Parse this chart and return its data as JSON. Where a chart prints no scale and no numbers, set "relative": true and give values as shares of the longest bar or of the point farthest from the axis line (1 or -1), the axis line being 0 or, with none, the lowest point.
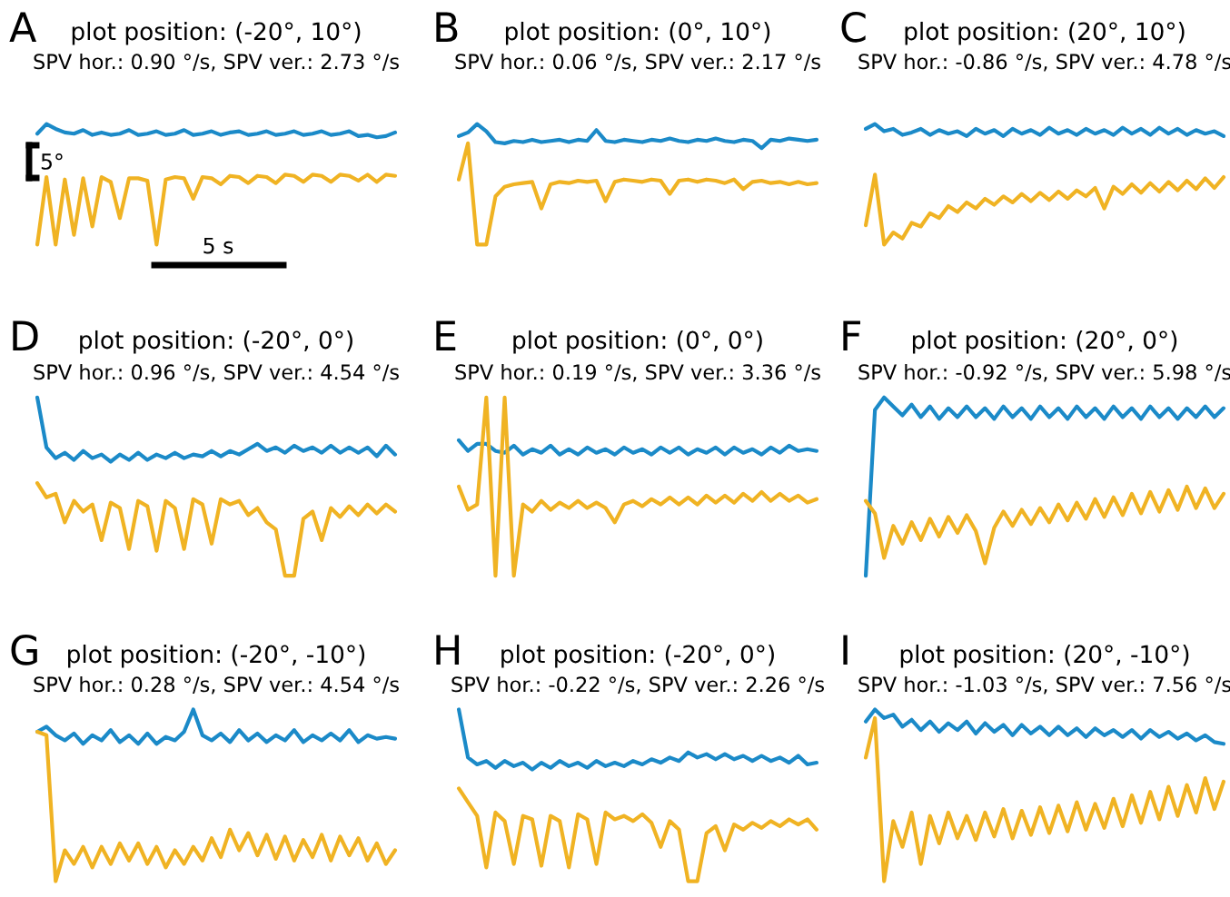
{
  "chart_data": [
    {
      "type": "line",
      "relative": true,
      "title": "plot position: (-20°, 10°)",
      "subtitle": "SPV hor.: 0.90 °/s, SPV ver.: 2.73 °/s",
      "annotations": [
        "A",
        "5°",
        "5 s"
      ],
      "categories": [
        null,
        null,
        null,
        null,
        null,
        null,
        null,
        null,
        null,
        null,
        null,
        null,
        null,
        null,
        null,
        null,
        null,
        null,
        null,
        null,
        null,
        null,
        null,
        null,
        null,
        null,
        null,
        null,
        null,
        null,
        null,
        null,
        null,
        null,
        null,
        null,
        null,
        null,
        null,
        null
      ],
      "series": [
        {
          "color": "#1b8ac8",
          "values": [
            0.92,
            1.0,
            0.96,
            0.93,
            0.92,
            0.95,
            0.91,
            0.93,
            0.91,
            0.92,
            0.95,
            0.91,
            0.92,
            0.94,
            0.91,
            0.92,
            0.95,
            0.91,
            0.92,
            0.94,
            0.91,
            0.93,
            0.94,
            0.91,
            0.92,
            0.94,
            0.91,
            0.92,
            0.94,
            0.91,
            0.92,
            0.94,
            0.91,
            0.92,
            0.94,
            0.9,
            0.91,
            0.89,
            0.9,
            0.93
          ]
        },
        {
          "color": "#f0b323",
          "values": [
            0,
            0.56,
            0,
            0.54,
            0.08,
            0.55,
            0.15,
            0.56,
            0.52,
            0.22,
            0.55,
            0.55,
            0.53,
            0,
            0.54,
            0.56,
            0.55,
            0.38,
            0.56,
            0.55,
            0.5,
            0.57,
            0.56,
            0.51,
            0.57,
            0.56,
            0.51,
            0.58,
            0.57,
            0.52,
            0.58,
            0.57,
            0.52,
            0.58,
            0.57,
            0.53,
            0.58,
            0.52,
            0.58,
            0.57
          ]
        }
      ]
    },
    {
      "type": "line",
      "relative": true,
      "title": "plot position: (0°, 10°)",
      "subtitle": "SPV hor.: 0.06 °/s, SPV ver.: 2.17 °/s",
      "annotations": [
        "B"
      ],
      "categories": [
        null,
        null,
        null,
        null,
        null,
        null,
        null,
        null,
        null,
        null,
        null,
        null,
        null,
        null,
        null,
        null,
        null,
        null,
        null,
        null,
        null,
        null,
        null,
        null,
        null,
        null,
        null,
        null,
        null,
        null,
        null,
        null,
        null,
        null,
        null,
        null,
        null,
        null,
        null,
        null
      ],
      "series": [
        {
          "color": "#1b8ac8",
          "values": [
            0.9,
            0.93,
            1.0,
            0.94,
            0.85,
            0.84,
            0.86,
            0.85,
            0.87,
            0.85,
            0.86,
            0.87,
            0.85,
            0.87,
            0.86,
            0.95,
            0.86,
            0.85,
            0.87,
            0.86,
            0.85,
            0.87,
            0.86,
            0.88,
            0.86,
            0.85,
            0.87,
            0.86,
            0.88,
            0.86,
            0.85,
            0.87,
            0.86,
            0.8,
            0.87,
            0.86,
            0.88,
            0.87,
            0.86,
            0.87
          ]
        },
        {
          "color": "#f0b323",
          "values": [
            0.54,
            0.84,
            0,
            0,
            0.4,
            0.48,
            0.5,
            0.51,
            0.52,
            0.3,
            0.5,
            0.52,
            0.51,
            0.53,
            0.52,
            0.53,
            0.36,
            0.52,
            0.54,
            0.53,
            0.52,
            0.54,
            0.53,
            0.42,
            0.53,
            0.54,
            0.52,
            0.54,
            0.53,
            0.51,
            0.54,
            0.46,
            0.52,
            0.53,
            0.51,
            0.52,
            0.5,
            0.52,
            0.5,
            0.51
          ]
        }
      ]
    },
    {
      "type": "line",
      "relative": true,
      "title": "plot position: (20°, 10°)",
      "subtitle": "SPV hor.: -0.86 °/s, SPV ver.: 4.78 °/s",
      "annotations": [
        "C"
      ],
      "categories": [
        null,
        null,
        null,
        null,
        null,
        null,
        null,
        null,
        null,
        null,
        null,
        null,
        null,
        null,
        null,
        null,
        null,
        null,
        null,
        null,
        null,
        null,
        null,
        null,
        null,
        null,
        null,
        null,
        null,
        null,
        null,
        null,
        null,
        null,
        null,
        null,
        null,
        null,
        null,
        null
      ],
      "series": [
        {
          "color": "#1b8ac8",
          "values": [
            0.96,
            1.0,
            0.94,
            0.96,
            0.91,
            0.93,
            0.96,
            0.91,
            0.95,
            0.92,
            0.94,
            0.9,
            0.96,
            0.92,
            0.95,
            0.9,
            0.96,
            0.92,
            0.95,
            0.91,
            0.97,
            0.92,
            0.95,
            0.91,
            0.96,
            0.92,
            0.95,
            0.91,
            0.97,
            0.92,
            0.96,
            0.91,
            0.97,
            0.92,
            0.96,
            0.91,
            0.95,
            0.92,
            0.94,
            0.9
          ]
        },
        {
          "color": "#f0b323",
          "values": [
            0.16,
            0.58,
            0,
            0.1,
            0.05,
            0.18,
            0.15,
            0.26,
            0.22,
            0.32,
            0.27,
            0.35,
            0.3,
            0.38,
            0.33,
            0.4,
            0.35,
            0.42,
            0.36,
            0.43,
            0.37,
            0.44,
            0.38,
            0.45,
            0.4,
            0.47,
            0.3,
            0.48,
            0.42,
            0.5,
            0.43,
            0.51,
            0.44,
            0.52,
            0.45,
            0.53,
            0.46,
            0.55,
            0.47,
            0.56
          ]
        }
      ]
    },
    {
      "type": "line",
      "relative": true,
      "title": "plot position: (-20°, 0°)",
      "subtitle": "SPV hor.: 0.96 °/s, SPV ver.: 4.54 °/s",
      "annotations": [
        "D"
      ],
      "categories": [
        null,
        null,
        null,
        null,
        null,
        null,
        null,
        null,
        null,
        null,
        null,
        null,
        null,
        null,
        null,
        null,
        null,
        null,
        null,
        null,
        null,
        null,
        null,
        null,
        null,
        null,
        null,
        null,
        null,
        null,
        null,
        null,
        null,
        null,
        null,
        null,
        null,
        null,
        null,
        null
      ],
      "series": [
        {
          "color": "#1b8ac8",
          "values": [
            1.0,
            0.72,
            0.66,
            0.69,
            0.65,
            0.7,
            0.66,
            0.68,
            0.64,
            0.68,
            0.65,
            0.69,
            0.65,
            0.68,
            0.66,
            0.69,
            0.66,
            0.68,
            0.67,
            0.7,
            0.67,
            0.7,
            0.68,
            0.71,
            0.74,
            0.7,
            0.72,
            0.69,
            0.73,
            0.7,
            0.72,
            0.69,
            0.73,
            0.69,
            0.72,
            0.69,
            0.72,
            0.67,
            0.73,
            0.68
          ]
        },
        {
          "color": "#f0b323",
          "values": [
            0.52,
            0.44,
            0.46,
            0.3,
            0.42,
            0.36,
            0.4,
            0.2,
            0.41,
            0.38,
            0.15,
            0.42,
            0.39,
            0.14,
            0.42,
            0.38,
            0.15,
            0.43,
            0.4,
            0.18,
            0.43,
            0.4,
            0.42,
            0.34,
            0.38,
            0.3,
            0.26,
            0,
            0,
            0.32,
            0.36,
            0.2,
            0.38,
            0.33,
            0.39,
            0.34,
            0.4,
            0.35,
            0.4,
            0.36
          ]
        }
      ]
    },
    {
      "type": "line",
      "relative": true,
      "title": "plot position: (0°, 0°)",
      "subtitle": "SPV hor.: 0.19 °/s, SPV ver.: 3.36 °/s",
      "annotations": [
        "E"
      ],
      "categories": [
        null,
        null,
        null,
        null,
        null,
        null,
        null,
        null,
        null,
        null,
        null,
        null,
        null,
        null,
        null,
        null,
        null,
        null,
        null,
        null,
        null,
        null,
        null,
        null,
        null,
        null,
        null,
        null,
        null,
        null,
        null,
        null,
        null,
        null,
        null,
        null,
        null,
        null,
        null,
        null
      ],
      "series": [
        {
          "color": "#1b8ac8",
          "values": [
            0.76,
            0.7,
            0.74,
            0.74,
            0.7,
            0.69,
            0.73,
            0.68,
            0.71,
            0.69,
            0.73,
            0.68,
            0.71,
            0.68,
            0.72,
            0.69,
            0.71,
            0.68,
            0.72,
            0.69,
            0.71,
            0.68,
            0.72,
            0.69,
            0.72,
            0.68,
            0.71,
            0.69,
            0.72,
            0.68,
            0.72,
            0.69,
            0.71,
            0.68,
            0.72,
            0.69,
            0.73,
            0.7,
            0.71,
            0.7
          ]
        },
        {
          "color": "#f0b323",
          "values": [
            0.5,
            0.37,
            0.4,
            1.0,
            0,
            1.0,
            0,
            0.4,
            0.36,
            0.42,
            0.37,
            0.41,
            0.38,
            0.42,
            0.38,
            0.41,
            0.38,
            0.3,
            0.4,
            0.42,
            0.39,
            0.43,
            0.4,
            0.44,
            0.4,
            0.44,
            0.4,
            0.45,
            0.41,
            0.45,
            0.41,
            0.46,
            0.42,
            0.47,
            0.42,
            0.46,
            0.42,
            0.45,
            0.41,
            0.43
          ]
        }
      ]
    },
    {
      "type": "line",
      "relative": true,
      "title": "plot position: (20°, 0°)",
      "subtitle": "SPV hor.: -0.92 °/s, SPV ver.: 5.98 °/s",
      "annotations": [
        "F"
      ],
      "categories": [
        null,
        null,
        null,
        null,
        null,
        null,
        null,
        null,
        null,
        null,
        null,
        null,
        null,
        null,
        null,
        null,
        null,
        null,
        null,
        null,
        null,
        null,
        null,
        null,
        null,
        null,
        null,
        null,
        null,
        null,
        null,
        null,
        null,
        null,
        null,
        null,
        null,
        null,
        null,
        null
      ],
      "series": [
        {
          "color": "#1b8ac8",
          "values": [
            0,
            0.93,
            1.0,
            0.95,
            0.9,
            0.96,
            0.89,
            0.95,
            0.88,
            0.94,
            0.89,
            0.95,
            0.89,
            0.94,
            0.88,
            0.95,
            0.89,
            0.94,
            0.88,
            0.95,
            0.89,
            0.94,
            0.88,
            0.95,
            0.89,
            0.94,
            0.88,
            0.95,
            0.89,
            0.94,
            0.88,
            0.95,
            0.89,
            0.94,
            0.88,
            0.94,
            0.89,
            0.95,
            0.89,
            0.94
          ]
        },
        {
          "color": "#f0b323",
          "values": [
            0.42,
            0.35,
            0.1,
            0.28,
            0.18,
            0.3,
            0.2,
            0.32,
            0.22,
            0.33,
            0.24,
            0.34,
            0.25,
            0.07,
            0.27,
            0.36,
            0.28,
            0.37,
            0.29,
            0.38,
            0.3,
            0.4,
            0.31,
            0.41,
            0.32,
            0.43,
            0.33,
            0.44,
            0.34,
            0.46,
            0.35,
            0.47,
            0.36,
            0.48,
            0.37,
            0.5,
            0.38,
            0.49,
            0.38,
            0.46
          ]
        }
      ]
    },
    {
      "type": "line",
      "relative": true,
      "title": "plot position: (-20°, -10°)",
      "subtitle": "SPV hor.: 0.28 °/s, SPV ver.: 4.54 °/s",
      "annotations": [
        "G"
      ],
      "categories": [
        null,
        null,
        null,
        null,
        null,
        null,
        null,
        null,
        null,
        null,
        null,
        null,
        null,
        null,
        null,
        null,
        null,
        null,
        null,
        null,
        null,
        null,
        null,
        null,
        null,
        null,
        null,
        null,
        null,
        null,
        null,
        null,
        null,
        null,
        null,
        null,
        null,
        null,
        null,
        null
      ],
      "series": [
        {
          "color": "#1b8ac8",
          "values": [
            0.87,
            0.9,
            0.85,
            0.82,
            0.86,
            0.8,
            0.85,
            0.82,
            0.88,
            0.81,
            0.85,
            0.8,
            0.86,
            0.8,
            0.84,
            0.82,
            0.87,
            1.0,
            0.85,
            0.82,
            0.86,
            0.81,
            0.88,
            0.82,
            0.86,
            0.81,
            0.85,
            0.82,
            0.88,
            0.81,
            0.85,
            0.82,
            0.86,
            0.82,
            0.88,
            0.81,
            0.85,
            0.83,
            0.84,
            0.83
          ]
        },
        {
          "color": "#f0b323",
          "values": [
            0.87,
            0.85,
            0,
            0.18,
            0.1,
            0.2,
            0.08,
            0.2,
            0.1,
            0.22,
            0.12,
            0.22,
            0.1,
            0.2,
            0.08,
            0.18,
            0.1,
            0.2,
            0.12,
            0.25,
            0.14,
            0.3,
            0.18,
            0.28,
            0.15,
            0.27,
            0.13,
            0.26,
            0.12,
            0.24,
            0.14,
            0.27,
            0.12,
            0.26,
            0.15,
            0.25,
            0.12,
            0.22,
            0.1,
            0.18
          ]
        }
      ]
    },
    {
      "type": "line",
      "relative": true,
      "title": "plot position: (-20°, 0°)",
      "subtitle": "SPV hor.: -0.22 °/s, SPV ver.: 2.26 °/s",
      "annotations": [
        "H"
      ],
      "categories": [
        null,
        null,
        null,
        null,
        null,
        null,
        null,
        null,
        null,
        null,
        null,
        null,
        null,
        null,
        null,
        null,
        null,
        null,
        null,
        null,
        null,
        null,
        null,
        null,
        null,
        null,
        null,
        null,
        null,
        null,
        null,
        null,
        null,
        null,
        null,
        null,
        null,
        null,
        null,
        null
      ],
      "series": [
        {
          "color": "#1b8ac8",
          "values": [
            1.0,
            0.72,
            0.68,
            0.7,
            0.66,
            0.7,
            0.67,
            0.69,
            0.65,
            0.69,
            0.66,
            0.7,
            0.67,
            0.69,
            0.66,
            0.7,
            0.67,
            0.69,
            0.67,
            0.7,
            0.68,
            0.71,
            0.69,
            0.72,
            0.7,
            0.75,
            0.72,
            0.74,
            0.71,
            0.74,
            0.71,
            0.73,
            0.7,
            0.73,
            0.7,
            0.72,
            0.69,
            0.73,
            0.68,
            0.69
          ]
        },
        {
          "color": "#f0b323",
          "values": [
            0.54,
            0.46,
            0.38,
            0.08,
            0.4,
            0.35,
            0.1,
            0.38,
            0.36,
            0.09,
            0.38,
            0.35,
            0.08,
            0.39,
            0.36,
            0.1,
            0.4,
            0.36,
            0.38,
            0.35,
            0.39,
            0.34,
            0.2,
            0.35,
            0.3,
            0,
            0,
            0.28,
            0.32,
            0.18,
            0.33,
            0.3,
            0.34,
            0.31,
            0.35,
            0.32,
            0.36,
            0.33,
            0.36,
            0.3
          ]
        }
      ]
    },
    {
      "type": "line",
      "relative": true,
      "title": "plot position: (20°, -10°)",
      "subtitle": "SPV hor.: -1.03 °/s, SPV ver.: 7.56 °/s",
      "annotations": [
        "I"
      ],
      "categories": [
        null,
        null,
        null,
        null,
        null,
        null,
        null,
        null,
        null,
        null,
        null,
        null,
        null,
        null,
        null,
        null,
        null,
        null,
        null,
        null,
        null,
        null,
        null,
        null,
        null,
        null,
        null,
        null,
        null,
        null,
        null,
        null,
        null,
        null,
        null,
        null,
        null,
        null,
        null,
        null
      ],
      "series": [
        {
          "color": "#1b8ac8",
          "values": [
            0.93,
            1.0,
            0.95,
            0.97,
            0.9,
            0.94,
            0.88,
            0.93,
            0.87,
            0.92,
            0.88,
            0.93,
            0.86,
            0.92,
            0.87,
            0.91,
            0.85,
            0.91,
            0.86,
            0.9,
            0.85,
            0.9,
            0.85,
            0.89,
            0.84,
            0.89,
            0.85,
            0.88,
            0.84,
            0.88,
            0.83,
            0.88,
            0.84,
            0.87,
            0.83,
            0.86,
            0.82,
            0.85,
            0.81,
            0.8
          ]
        },
        {
          "color": "#f0b323",
          "values": [
            0.72,
            0.95,
            0,
            0.35,
            0.2,
            0.4,
            0.1,
            0.38,
            0.22,
            0.4,
            0.25,
            0.38,
            0.24,
            0.4,
            0.26,
            0.42,
            0.25,
            0.41,
            0.27,
            0.43,
            0.28,
            0.44,
            0.29,
            0.46,
            0.3,
            0.45,
            0.31,
            0.48,
            0.32,
            0.5,
            0.34,
            0.52,
            0.36,
            0.55,
            0.38,
            0.56,
            0.4,
            0.6,
            0.42,
            0.58
          ]
        }
      ]
    }
  ]
}
